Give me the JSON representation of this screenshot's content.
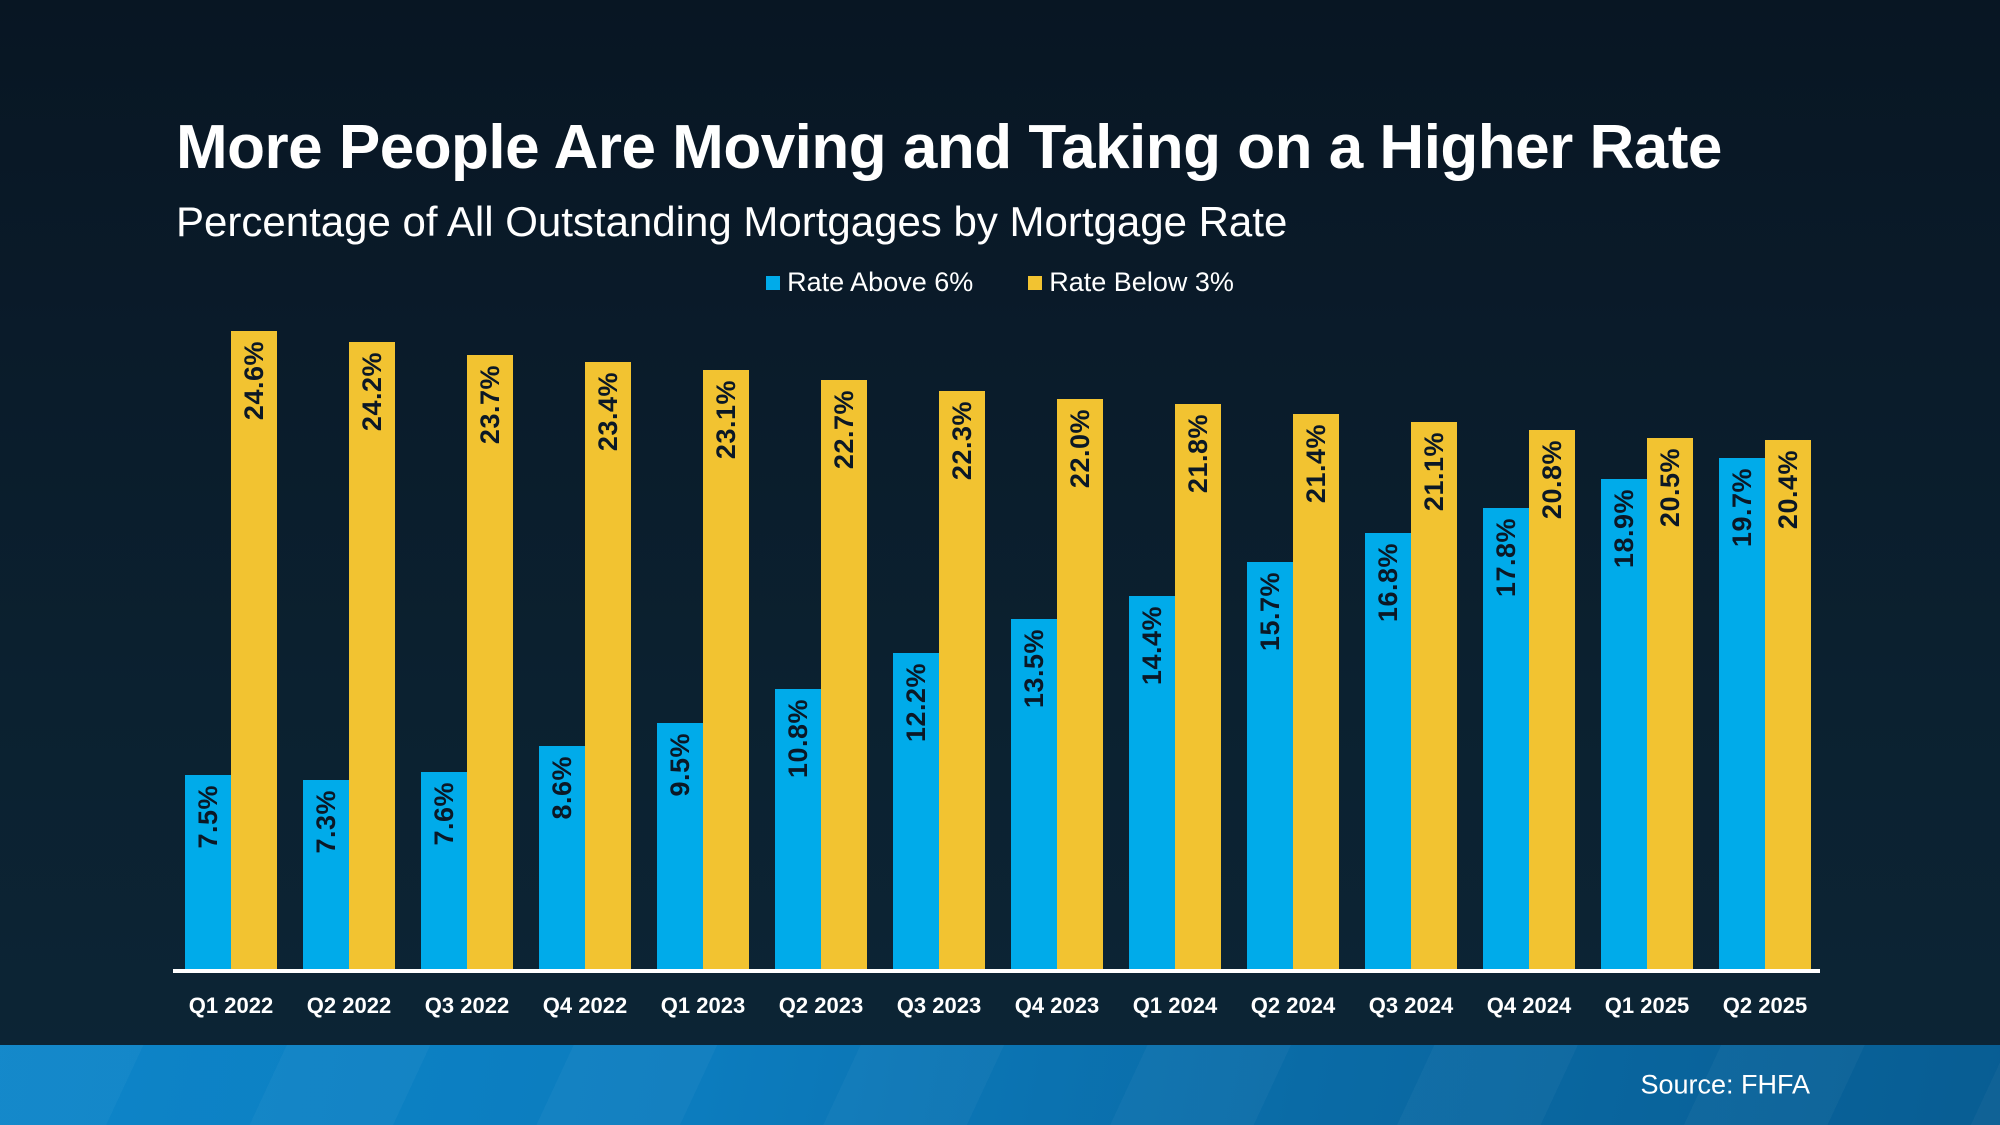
{
  "slide": {
    "title": "More People Are Moving and Taking on a Higher Rate",
    "subtitle": "Percentage of All Outstanding Mortgages by Mortgage Rate",
    "source": "Source: FHFA"
  },
  "colors": {
    "background_top": "#081623",
    "background_bottom": "#0c2536",
    "bar_blue": "#00ABEA",
    "bar_yellow": "#F2C331",
    "bar_value_label": "#0b1826",
    "axis_line": "#FFFFFF",
    "text": "#FFFFFF",
    "footer_left": "#0d85c9",
    "footer_right": "#085d93"
  },
  "chart_data": {
    "type": "bar",
    "title": "More People Are Moving and Taking on a Higher Rate",
    "subtitle": "Percentage of All Outstanding Mortgages by Mortgage Rate",
    "categories": [
      "Q1 2022",
      "Q2 2022",
      "Q3 2022",
      "Q4 2022",
      "Q1 2023",
      "Q2 2023",
      "Q3 2023",
      "Q4 2023",
      "Q1 2024",
      "Q2 2024",
      "Q3 2024",
      "Q4 2024",
      "Q1 2025",
      "Q2 2025"
    ],
    "series": [
      {
        "name": "Rate Above 6%",
        "color": "#00ABEA",
        "values": [
          7.5,
          7.3,
          7.6,
          8.6,
          9.5,
          10.8,
          12.2,
          13.5,
          14.4,
          15.7,
          16.8,
          17.8,
          18.9,
          19.7
        ]
      },
      {
        "name": "Rate Below 3%",
        "color": "#F2C331",
        "values": [
          24.6,
          24.2,
          23.7,
          23.4,
          23.1,
          22.7,
          22.3,
          22.0,
          21.8,
          21.4,
          21.1,
          20.8,
          20.5,
          20.4
        ]
      }
    ],
    "value_label_format": "{value}%",
    "value_label_decimals": 1,
    "xlabel": "",
    "ylabel": "",
    "ylim": [
      0,
      27
    ],
    "grid": false,
    "legend_position": "top",
    "source": "Source: FHFA"
  }
}
